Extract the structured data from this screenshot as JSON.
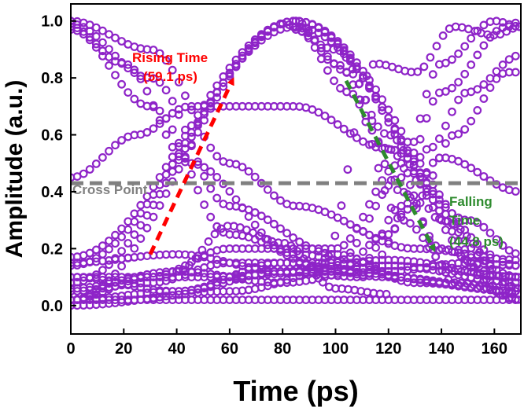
{
  "chart_data": {
    "type": "scatter",
    "title": "",
    "xlabel": "Time (ps)",
    "ylabel": "Amplitude (a.u.)",
    "xlim": [
      0,
      170
    ],
    "ylim": [
      -0.1,
      1.06
    ],
    "xticks": [
      "0",
      "20",
      "40",
      "60",
      "80",
      "100",
      "120",
      "140",
      "160"
    ],
    "yticks": [
      "0.0",
      "0.2",
      "0.4",
      "0.6",
      "0.8",
      "1.0"
    ],
    "grid": false,
    "marker_color": "#8E24C8",
    "series": [
      {
        "x": [
          0,
          85,
          170
        ],
        "y": [
          0.02,
          1.0,
          0.02
        ]
      },
      {
        "x": [
          0,
          85,
          170
        ],
        "y": [
          0.08,
          1.0,
          0.06
        ]
      },
      {
        "x": [
          0,
          85,
          170
        ],
        "y": [
          0.14,
          0.98,
          0.1
        ]
      },
      {
        "x": [
          0,
          85,
          170
        ],
        "y": [
          0.17,
          1.0,
          0.14
        ]
      },
      {
        "x": [
          0,
          30,
          60,
          85,
          130,
          170
        ],
        "y": [
          1.0,
          0.9,
          0.5,
          0.35,
          0.2,
          0.16
        ]
      },
      {
        "x": [
          0,
          30,
          60,
          100,
          130,
          170
        ],
        "y": [
          0.99,
          0.8,
          0.35,
          0.18,
          0.08,
          0.05
        ]
      },
      {
        "x": [
          0,
          30,
          60,
          100,
          170
        ],
        "y": [
          0.97,
          0.7,
          0.25,
          0.12,
          0.05
        ]
      },
      {
        "x": [
          0,
          20,
          45,
          85,
          120,
          150,
          170
        ],
        "y": [
          0.98,
          0.85,
          0.5,
          0.18,
          0.12,
          0.15,
          0.14
        ]
      },
      {
        "x": [
          0,
          25,
          45,
          85,
          120,
          150,
          170
        ],
        "y": [
          0.45,
          0.6,
          0.7,
          0.7,
          0.55,
          0.3,
          0.18
        ]
      },
      {
        "x": [
          0,
          170
        ],
        "y": [
          0.02,
          0.02
        ]
      },
      {
        "x": [
          0,
          40,
          80,
          120,
          170
        ],
        "y": [
          0.1,
          0.05,
          0.15,
          0.1,
          0.05
        ]
      },
      {
        "x": [
          0,
          40,
          80,
          120,
          170
        ],
        "y": [
          0.06,
          0.12,
          0.08,
          0.14,
          0.08
        ]
      },
      {
        "x": [
          0,
          40,
          80,
          120,
          170
        ],
        "y": [
          0.15,
          0.18,
          0.12,
          0.16,
          0.1
        ]
      },
      {
        "x": [
          40,
          60,
          80,
          100,
          120
        ],
        "y": [
          0.12,
          0.28,
          0.22,
          0.06,
          0.04
        ]
      },
      {
        "x": [
          0,
          30,
          60,
          100,
          125,
          140,
          160,
          170
        ],
        "y": [
          0.02,
          0.1,
          0.2,
          0.2,
          0.5,
          0.85,
          1.0,
          0.98
        ]
      },
      {
        "x": [
          0,
          30,
          60,
          100,
          125,
          140,
          165,
          170
        ],
        "y": [
          0.05,
          0.08,
          0.15,
          0.15,
          0.45,
          0.75,
          0.98,
          1.0
        ]
      },
      {
        "x": [
          0,
          40,
          80,
          110,
          130,
          145,
          165,
          170
        ],
        "y": [
          0.02,
          0.05,
          0.12,
          0.1,
          0.35,
          0.6,
          0.82,
          0.82
        ]
      },
      {
        "x": [
          0,
          50,
          100,
          120,
          135,
          150,
          170
        ],
        "y": [
          0.1,
          0.1,
          0.12,
          0.25,
          0.55,
          0.75,
          0.88
        ]
      },
      {
        "x": [
          0,
          60,
          110,
          125,
          140,
          170
        ],
        "y": [
          0.0,
          0.05,
          0.15,
          0.35,
          0.52,
          0.4
        ]
      },
      {
        "x": [
          95,
          115,
          130,
          145,
          160,
          170
        ],
        "y": [
          0.15,
          0.85,
          0.82,
          0.98,
          0.95,
          0.98
        ]
      },
      {
        "x": [
          85,
          100,
          120,
          140,
          170
        ],
        "y": [
          1.0,
          0.85,
          0.55,
          0.2,
          0.02
        ]
      },
      {
        "x": [
          85,
          105,
          125,
          145,
          170
        ],
        "y": [
          0.98,
          0.82,
          0.4,
          0.08,
          0.04
        ]
      },
      {
        "x": [
          85,
          105,
          125,
          145,
          170
        ],
        "y": [
          0.97,
          0.75,
          0.3,
          0.12,
          0.1
        ]
      },
      {
        "x": [
          80,
          100,
          120,
          140,
          170
        ],
        "y": [
          0.99,
          0.9,
          0.6,
          0.3,
          0.06
        ]
      }
    ],
    "annotations": {
      "rising": {
        "line1": "Rising Time",
        "line2": "(59.1 ps)",
        "color": "#FF0000",
        "from": [
          30,
          0.18
        ],
        "to": [
          61,
          0.79
        ]
      },
      "falling": {
        "line1": "Falling",
        "line2": "Time",
        "line3": "(44.8 ps)",
        "color": "#2E8B2E",
        "from": [
          104,
          0.79
        ],
        "to": [
          137,
          0.2
        ]
      },
      "cross_point": {
        "label": "Cross Point",
        "value": 0.43,
        "color": "#808080"
      }
    }
  }
}
